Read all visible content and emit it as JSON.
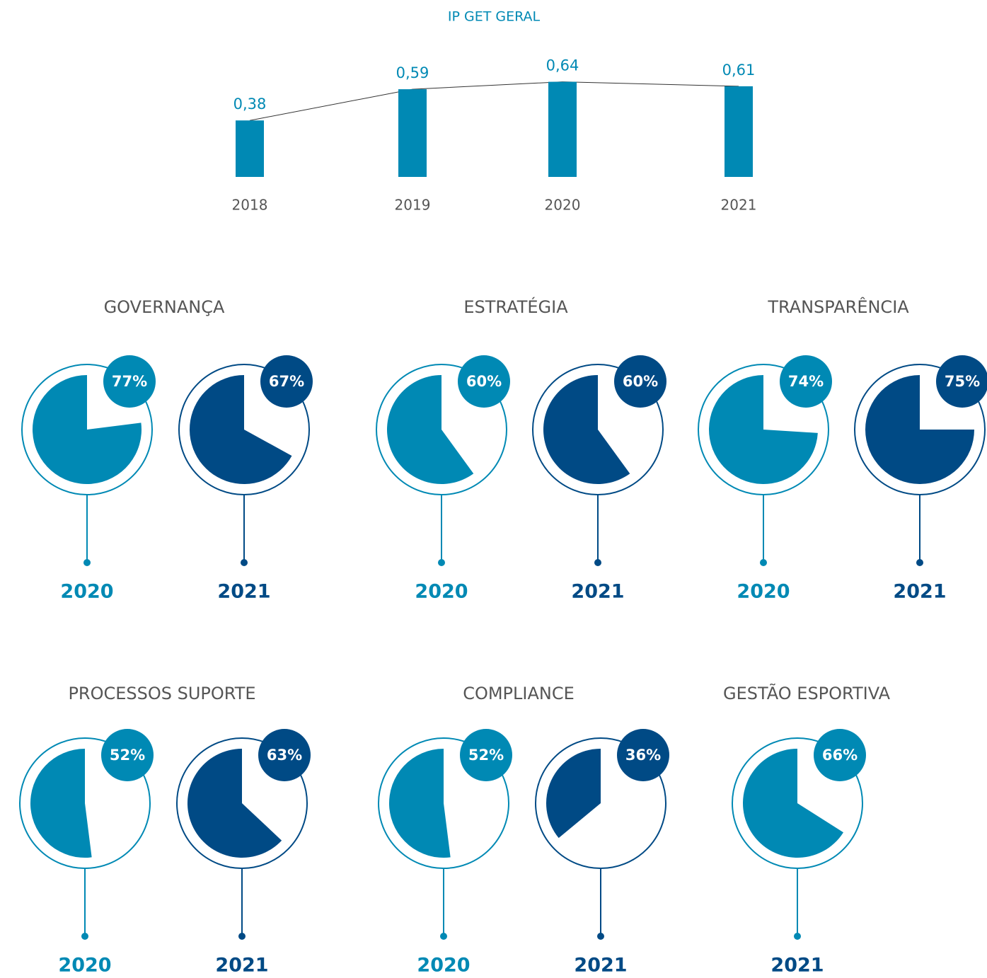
{
  "chart_data": [
    {
      "type": "bar",
      "title": "IP GET GERAL",
      "categories": [
        "2018",
        "2019",
        "2020",
        "2021"
      ],
      "values": [
        0.38,
        0.59,
        0.64,
        0.61
      ],
      "value_labels": [
        "0,38",
        "0,59",
        "0,64",
        "0,61"
      ],
      "color": "#0089b4"
    },
    {
      "type": "pie",
      "title": "GOVERNANÇA",
      "categories": [
        "2020",
        "2021"
      ],
      "values": [
        77,
        67
      ],
      "value_labels": [
        "77%",
        "67%"
      ],
      "colors": [
        "#0089b4",
        "#004a85"
      ]
    },
    {
      "type": "pie",
      "title": "ESTRATÉGIA",
      "categories": [
        "2020",
        "2021"
      ],
      "values": [
        60,
        60
      ],
      "value_labels": [
        "60%",
        "60%"
      ],
      "colors": [
        "#0089b4",
        "#004a85"
      ]
    },
    {
      "type": "pie",
      "title": "TRANSPARÊNCIA",
      "categories": [
        "2020",
        "2021"
      ],
      "values": [
        74,
        75
      ],
      "value_labels": [
        "74%",
        "75%"
      ],
      "colors": [
        "#0089b4",
        "#004a85"
      ]
    },
    {
      "type": "pie",
      "title": "PROCESSOS SUPORTE",
      "categories": [
        "2020",
        "2021"
      ],
      "values": [
        52,
        63
      ],
      "value_labels": [
        "52%",
        "63%"
      ],
      "colors": [
        "#0089b4",
        "#004a85"
      ]
    },
    {
      "type": "pie",
      "title": "COMPLIANCE",
      "categories": [
        "2020",
        "2021"
      ],
      "values": [
        52,
        36
      ],
      "value_labels": [
        "52%",
        "36%"
      ],
      "colors": [
        "#0089b4",
        "#004a85"
      ]
    },
    {
      "type": "pie",
      "title": "GESTÃO ESPORTIVA",
      "categories": [
        "2021"
      ],
      "values": [
        66
      ],
      "value_labels": [
        "66%"
      ],
      "colors": [
        "#0089b4"
      ],
      "label_colors": [
        "#004a85"
      ]
    }
  ]
}
